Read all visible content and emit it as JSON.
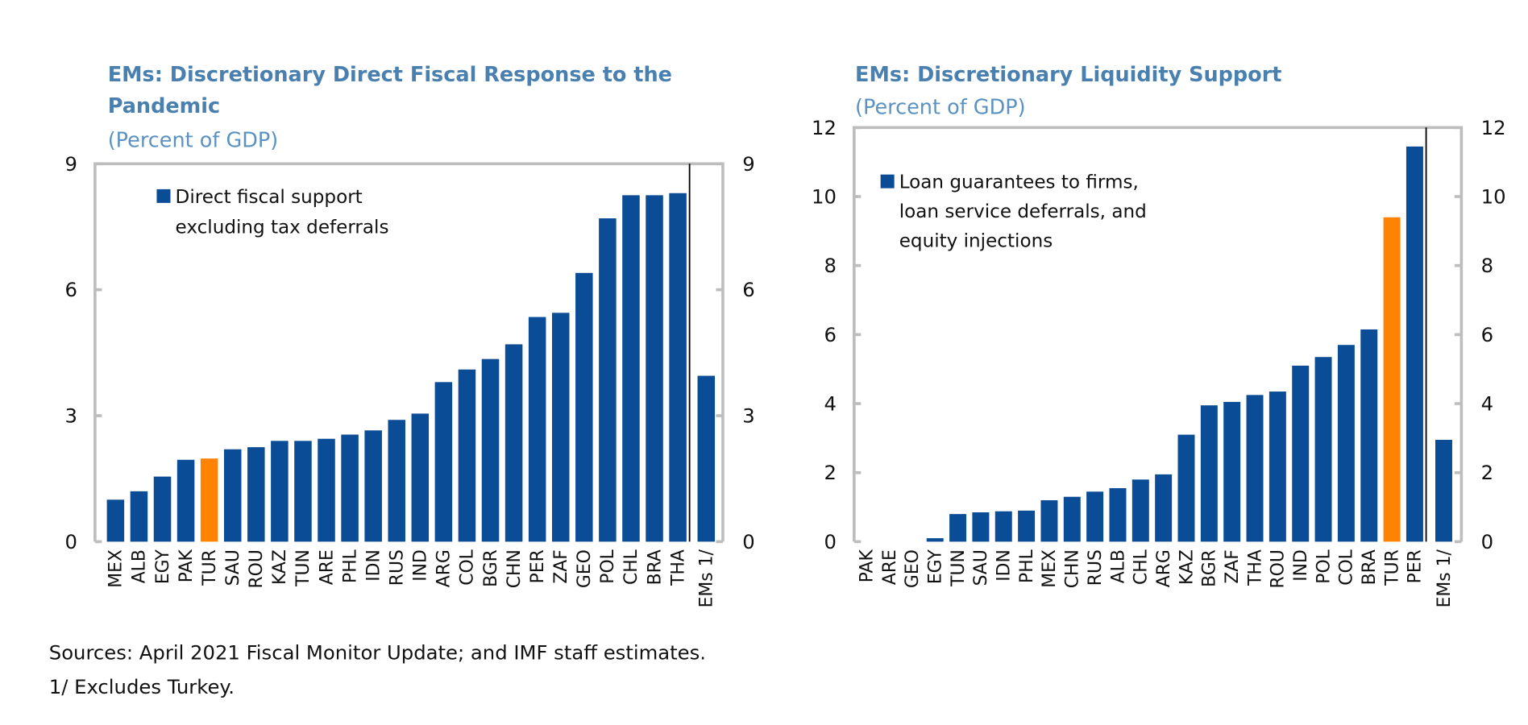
{
  "colors": {
    "bar": "#0b4c96",
    "highlight": "#ff8300",
    "frame": "#bdbdbd",
    "title": "#4a80b0"
  },
  "chart_data": [
    {
      "type": "bar",
      "title_line1": "EMs: Discretionary Direct Fiscal Response to the",
      "title_line2": "Pandemic",
      "subtitle": "(Percent of GDP)",
      "legend": "Direct fiscal support|excluding tax deferrals",
      "legend_line1": "Direct fiscal support",
      "legend_line2": "excluding tax deferrals",
      "ylim": [
        0,
        9
      ],
      "yticks": [
        "0",
        "3",
        "6",
        "9"
      ],
      "highlight": "TUR",
      "categories": [
        "MEX",
        "ALB",
        "EGY",
        "PAK",
        "TUR",
        "SAU",
        "ROU",
        "KAZ",
        "TUN",
        "ARE",
        "PHL",
        "IDN",
        "RUS",
        "IND",
        "ARG",
        "COL",
        "BGR",
        "CHN",
        "PER",
        "ZAF",
        "GEO",
        "POL",
        "CHL",
        "BRA",
        "THA"
      ],
      "values": [
        1.0,
        1.2,
        1.55,
        1.95,
        1.98,
        2.2,
        2.25,
        2.4,
        2.4,
        2.45,
        2.55,
        2.65,
        2.9,
        3.05,
        3.8,
        4.1,
        4.35,
        4.7,
        5.35,
        5.45,
        6.4,
        7.7,
        8.25,
        8.25,
        8.3
      ],
      "aggregate": {
        "label": "EMs 1/",
        "value": 3.95
      }
    },
    {
      "type": "bar",
      "title_line1": "EMs: Discretionary Liquidity Support",
      "subtitle": "(Percent of GDP)",
      "legend_line1": "Loan guarantees to firms,",
      "legend_line2": "loan service deferrals, and",
      "legend_line3": "equity injections",
      "ylim": [
        0,
        12
      ],
      "yticks": [
        "0",
        "2",
        "4",
        "6",
        "8",
        "10",
        "12"
      ],
      "highlight": "TUR",
      "categories": [
        "PAK",
        "ARE",
        "GEO",
        "EGY",
        "TUN",
        "SAU",
        "IDN",
        "PHL",
        "MEX",
        "CHN",
        "RUS",
        "ALB",
        "CHL",
        "ARG",
        "KAZ",
        "BGR",
        "ZAF",
        "THA",
        "ROU",
        "IND",
        "POL",
        "COL",
        "BRA",
        "TUR",
        "PER"
      ],
      "values": [
        0,
        0,
        0,
        0.1,
        0.8,
        0.85,
        0.88,
        0.9,
        1.2,
        1.3,
        1.45,
        1.55,
        1.8,
        1.95,
        3.1,
        3.95,
        4.05,
        4.25,
        4.35,
        5.1,
        5.35,
        5.7,
        6.15,
        9.4,
        11.45
      ],
      "aggregate": {
        "label": "EMs 1/",
        "value": 2.95
      }
    }
  ],
  "footnotes": {
    "sources": "Sources: April 2021 Fiscal Monitor Update; and IMF staff estimates.",
    "note": "1/ Excludes Turkey."
  }
}
